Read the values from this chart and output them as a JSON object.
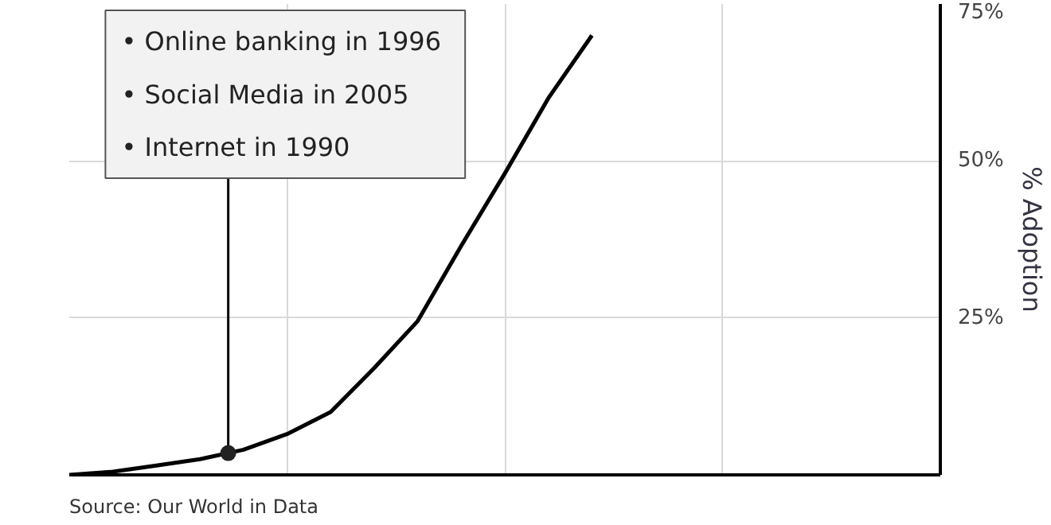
{
  "chart_data": {
    "type": "line",
    "ylabel": "% Adoption",
    "categories": [
      null,
      null,
      null,
      null,
      null,
      null,
      null,
      null,
      null,
      null,
      null,
      null,
      null,
      null,
      null,
      null,
      null,
      null,
      null,
      null,
      null
    ],
    "series": [
      {
        "color": "#000000",
        "values": [
          0,
          0.5,
          1.5,
          2.5,
          4,
          6.5,
          10,
          17,
          24.5,
          36.5,
          48,
          60,
          70,
          null,
          null,
          null,
          null,
          null,
          null,
          null,
          null
        ]
      }
    ],
    "ylim": [
      0,
      75
    ],
    "yticks": [
      {
        "value": 25,
        "label": "25%"
      },
      {
        "value": 50,
        "label": "50%"
      },
      {
        "value": 75,
        "label": "75%"
      }
    ],
    "tick_labels": "y",
    "grid": true,
    "marker": "none",
    "line_style": "solid",
    "annotations": [
      "•  Online banking in 1996\n•  Social Media in 2005\n•  Internet in 1990",
      "Source: Our World in Data"
    ]
  }
}
